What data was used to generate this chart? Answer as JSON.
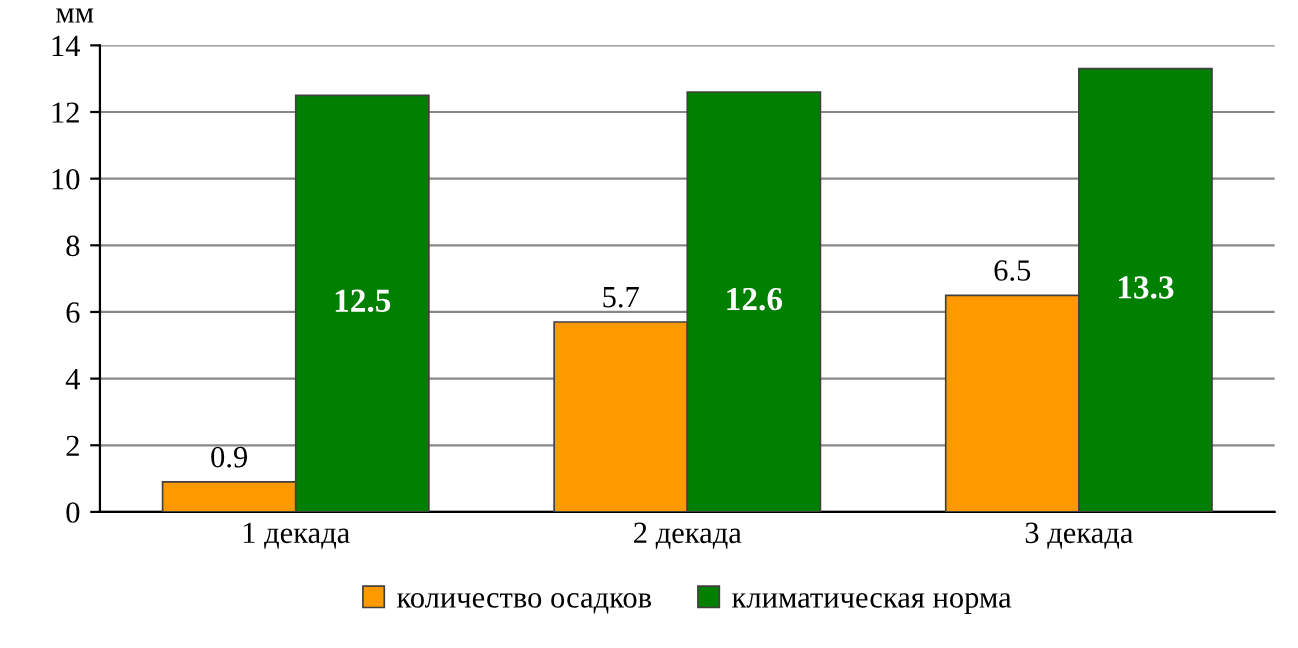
{
  "chart_data": {
    "type": "bar",
    "ylabel": "мм",
    "categories": [
      "1 декада",
      "2 декада",
      "3 декада"
    ],
    "series": [
      {
        "name": "количество осадков",
        "color": "#ff9900",
        "values": [
          0.9,
          5.7,
          6.5
        ]
      },
      {
        "name": "климатическая норма",
        "color": "#008000",
        "values": [
          12.5,
          12.6,
          13.3
        ]
      }
    ],
    "ylim": [
      0,
      14
    ],
    "yticks": [
      0,
      2,
      4,
      6,
      8,
      10,
      12,
      14
    ],
    "grid": "y",
    "legend": "bottom",
    "data_labels": true
  }
}
